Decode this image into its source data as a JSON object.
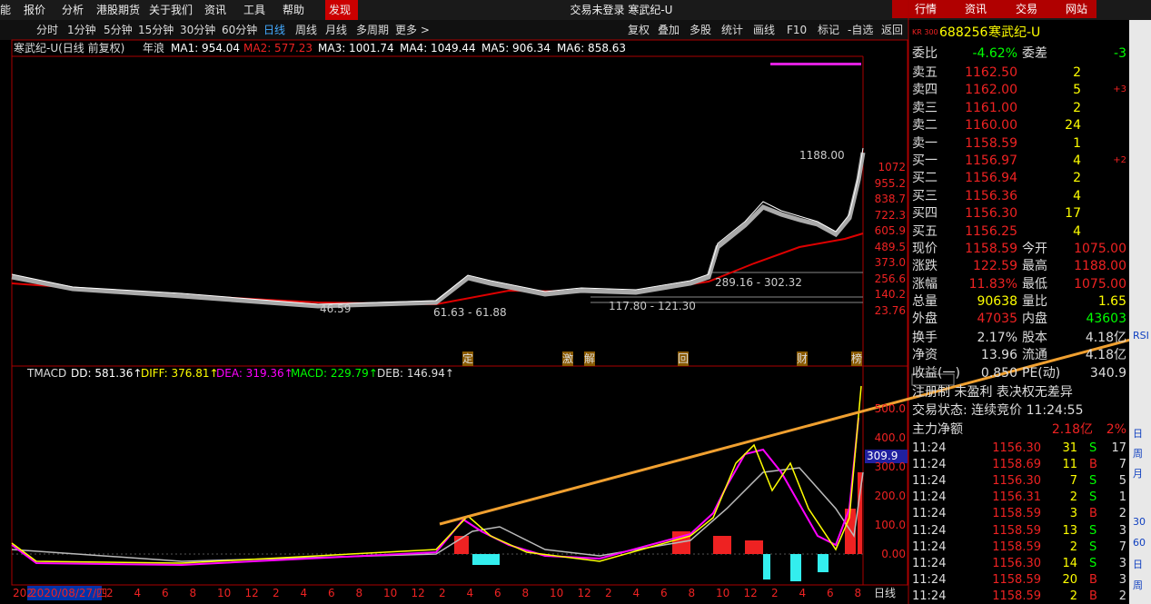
{
  "menu": [
    "能",
    "报价",
    "分析",
    "港股期货",
    "关于我们",
    "资讯",
    "工具",
    "帮助",
    "发现"
  ],
  "window_title": "交易未登录  寒武纪-U",
  "top_buttons": [
    "行情",
    "资讯",
    "交易",
    "网站"
  ],
  "periods": [
    "分时",
    "1分钟",
    "5分钟",
    "15分钟",
    "30分钟",
    "60分钟",
    "日线",
    "周线",
    "月线",
    "多周期",
    "更多 >"
  ],
  "tools": [
    "复权",
    "叠加",
    "多股",
    "统计",
    "画线",
    "F10",
    "标记",
    "-自选",
    "返回"
  ],
  "chart": {
    "name": "寒武纪-U(日线 前复权)",
    "indicator": "年浪",
    "ma": [
      "MA1: 954.04",
      "MA2: 577.23",
      "MA3: 1001.74",
      "MA4: 1049.44",
      "MA5: 906.34",
      "MA6: 858.63"
    ],
    "price_axis": [
      "1072",
      "955.2",
      "838.7",
      "722.3",
      "605.9",
      "489.5",
      "373.0",
      "256.6",
      "140.2",
      "23.76"
    ],
    "annotations": [
      "1188.00",
      "289.16 - 302.32",
      "46.59",
      "61.63 - 61.88",
      "117.80 - 121.30"
    ],
    "events": [
      "定",
      "激",
      "解",
      "回",
      "财",
      "榜"
    ]
  },
  "macd": {
    "items": [
      "TMACD",
      "DD: 581.36↑",
      "DIFF: 376.81↑",
      "DEA: 319.36↑",
      "MACD: 229.79↑",
      "DEB: 146.94↑"
    ],
    "axis": [
      "500.0",
      "400.0",
      "300.0",
      "200.0",
      "100.0",
      "0.00"
    ],
    "current": "309.9"
  },
  "date_axis": [
    "202",
    "2020/08/27/四",
    "2",
    "4",
    "6",
    "8",
    "10",
    "12",
    "2",
    "4",
    "6",
    "8",
    "10",
    "12",
    "2",
    "4",
    "6",
    "8",
    "10",
    "12",
    "2",
    "4",
    "6",
    "8",
    "10",
    "12",
    "2",
    "4",
    "6",
    "8"
  ],
  "period_label": "日线",
  "quote": {
    "badge": "KR\n300",
    "code": "688256",
    "name": "寒武纪-U",
    "ratio": [
      "委比",
      "-4.62%",
      "委差",
      "-3"
    ],
    "book": [
      [
        "卖五",
        "1162.50",
        "2",
        ""
      ],
      [
        "卖四",
        "1162.00",
        "5",
        "+3"
      ],
      [
        "卖三",
        "1161.00",
        "2",
        ""
      ],
      [
        "卖二",
        "1160.00",
        "24",
        ""
      ],
      [
        "卖一",
        "1158.59",
        "1",
        ""
      ],
      [
        "买一",
        "1156.97",
        "4",
        "+2"
      ],
      [
        "买二",
        "1156.94",
        "2",
        ""
      ],
      [
        "买三",
        "1156.36",
        "4",
        ""
      ],
      [
        "买四",
        "1156.30",
        "17",
        ""
      ],
      [
        "买五",
        "1156.25",
        "4",
        ""
      ]
    ],
    "stats": [
      [
        "现价",
        "1158.59",
        "今开",
        "1075.00"
      ],
      [
        "涨跌",
        "122.59",
        "最高",
        "1188.00"
      ],
      [
        "涨幅",
        "11.83%",
        "最低",
        "1075.00"
      ],
      [
        "总量",
        "90638",
        "量比",
        "1.65"
      ],
      [
        "外盘",
        "47035",
        "内盘",
        "43603"
      ],
      [
        "换手",
        "2.17%",
        "股本",
        "4.18亿"
      ],
      [
        "净资",
        "13.96",
        "流通",
        "4.18亿"
      ],
      [
        "收益(一)",
        "0.850",
        "PE(动)",
        "340.9"
      ]
    ],
    "tags": "注册制 未盈利 表决权无差异",
    "status": "交易状态: 连续竞价 11:24:55",
    "flow": [
      "主力净额",
      "2.18亿",
      "2%"
    ],
    "trades": [
      [
        "11:24",
        "1156.30",
        "31",
        "S",
        "17"
      ],
      [
        "11:24",
        "1158.69",
        "11",
        "B",
        "7"
      ],
      [
        "11:24",
        "1156.30",
        "7",
        "S",
        "5"
      ],
      [
        "11:24",
        "1156.31",
        "2",
        "S",
        "1"
      ],
      [
        "11:24",
        "1158.59",
        "3",
        "B",
        "2"
      ],
      [
        "11:24",
        "1158.59",
        "13",
        "S",
        "3"
      ],
      [
        "11:24",
        "1158.59",
        "2",
        "S",
        "7"
      ],
      [
        "11:24",
        "1156.30",
        "14",
        "S",
        "3"
      ],
      [
        "11:24",
        "1158.59",
        "20",
        "B",
        "3"
      ],
      [
        "11:24",
        "1158.59",
        "2",
        "B",
        "2"
      ]
    ]
  },
  "sidebar": [
    "RSI",
    "日",
    "周",
    "月",
    "30",
    "60",
    "日",
    "周"
  ]
}
